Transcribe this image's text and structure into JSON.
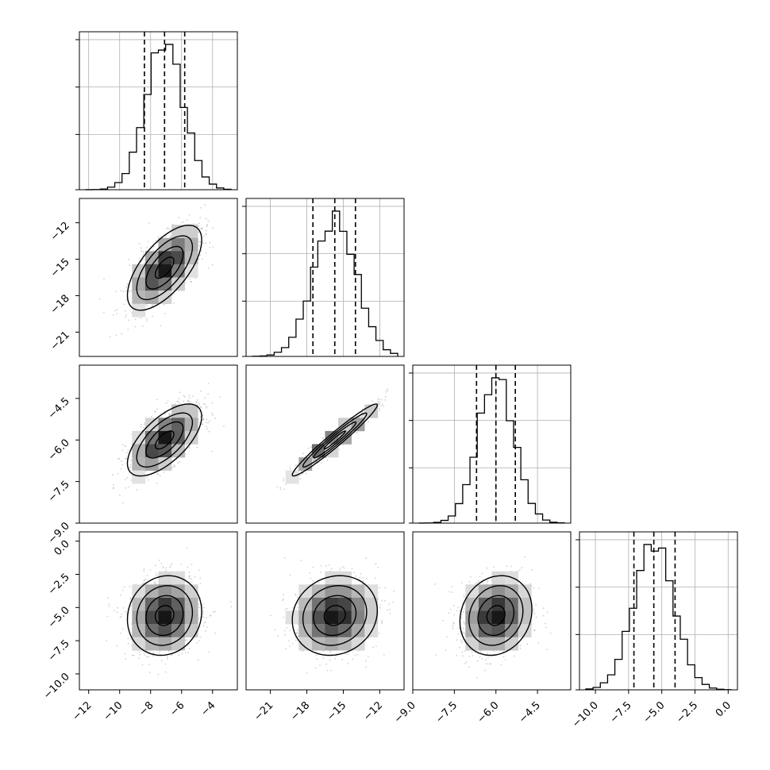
{
  "chart_data": {
    "type": "scatter",
    "subtype": "corner-plot",
    "grid": true,
    "parameters": [
      {
        "range": [
          -12.6,
          -2.4
        ],
        "ticks": [
          -12,
          -10,
          -8,
          -6,
          -4
        ],
        "tick_labels": [
          "−12",
          "−10",
          "−8",
          "−6",
          "−4"
        ],
        "mean": -7.1,
        "sd": 1.2,
        "quantiles": [
          -8.4,
          -7.1,
          -5.8
        ]
      },
      {
        "range": [
          -23.0,
          -10.0
        ],
        "ticks": [
          -21,
          -18,
          -15,
          -12
        ],
        "tick_labels": [
          "−21",
          "−18",
          "−15",
          "−12"
        ],
        "mean": -15.7,
        "sd": 1.75,
        "quantiles": [
          -17.5,
          -15.7,
          -14.0
        ]
      },
      {
        "range": [
          -9.0,
          -3.3
        ],
        "ticks": [
          -9.0,
          -7.5,
          -6.0,
          -4.5
        ],
        "tick_labels": [
          "−9.0",
          "−7.5",
          "−6.0",
          "−4.5"
        ],
        "mean": -6.0,
        "sd": 0.65,
        "quantiles": [
          -6.7,
          -6.0,
          -5.3
        ]
      },
      {
        "range": [
          -11.2,
          0.7
        ],
        "ticks": [
          -10.0,
          -7.5,
          -5.0,
          -2.5,
          0.0
        ],
        "tick_labels": [
          "−10.0",
          "−7.5",
          "−5.0",
          "−2.5",
          "0.0"
        ],
        "mean": -5.6,
        "sd": 1.5,
        "quantiles": [
          -7.1,
          -5.6,
          -4.0
        ]
      }
    ],
    "correlations": [
      {
        "row": 1,
        "col": 0,
        "rho": 0.65
      },
      {
        "row": 2,
        "col": 0,
        "rho": 0.65
      },
      {
        "row": 2,
        "col": 1,
        "rho": 0.97
      },
      {
        "row": 3,
        "col": 0,
        "rho": 0.1
      },
      {
        "row": 3,
        "col": 1,
        "rho": 0.12
      },
      {
        "row": 3,
        "col": 2,
        "rho": 0.15
      }
    ],
    "contour_levels_sigma": [
      0.5,
      1.0,
      1.5,
      2.0
    ],
    "colors": {
      "line": "#000000",
      "scatter": "#9a9a9a",
      "grid": "#b0b0b0",
      "hist_dark": "#000000"
    }
  }
}
